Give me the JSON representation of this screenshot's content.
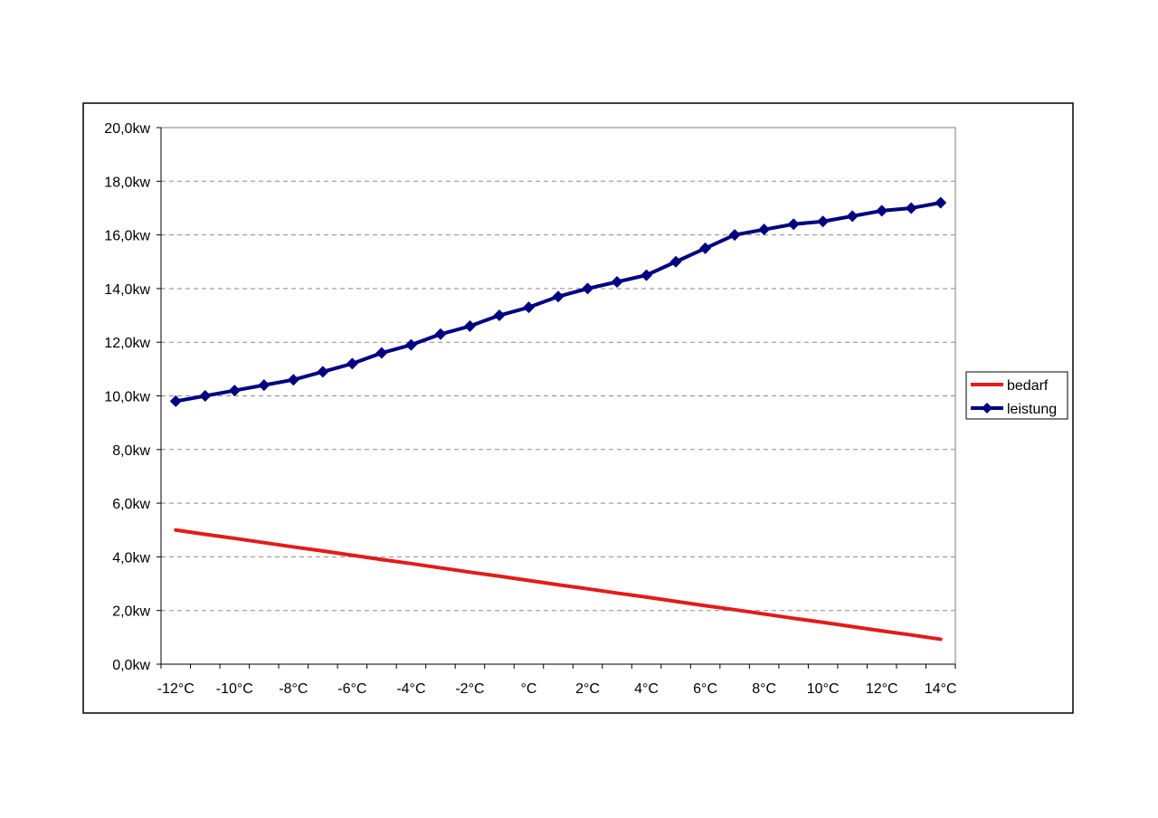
{
  "chart_data": {
    "type": "line",
    "x": [
      -12,
      -11,
      -10,
      -9,
      -8,
      -7,
      -6,
      -5,
      -4,
      -3,
      -2,
      -1,
      0,
      1,
      2,
      3,
      4,
      5,
      6,
      7,
      8,
      9,
      10,
      11,
      12,
      13,
      14
    ],
    "x_tick_values": [
      -12,
      -10,
      -8,
      -6,
      -4,
      -2,
      0,
      2,
      4,
      6,
      8,
      10,
      12,
      14
    ],
    "x_tick_labels": [
      "-12°C",
      "-10°C",
      "-8°C",
      "-6°C",
      "-4°C",
      "-2°C",
      "°C",
      "2°C",
      "4°C",
      "6°C",
      "8°C",
      "10°C",
      "12°C",
      "14°C"
    ],
    "y_tick_values": [
      0,
      2,
      4,
      6,
      8,
      10,
      12,
      14,
      16,
      18,
      20
    ],
    "y_tick_labels": [
      "0,0kw",
      "2,0kw",
      "4,0kw",
      "6,0kw",
      "8,0kw",
      "10,0kw",
      "12,0kw",
      "14,0kw",
      "16,0kw",
      "18,0kw",
      "20,0kw"
    ],
    "ylim": [
      0,
      20
    ],
    "xlim": [
      -12.5,
      14.5
    ],
    "grid": "horizontal dashed",
    "legend_position": "right",
    "series": [
      {
        "name": "bedarf",
        "color": "#e31b1b",
        "markers": false,
        "values": [
          5.0,
          4.84,
          4.69,
          4.53,
          4.37,
          4.22,
          4.06,
          3.9,
          3.75,
          3.59,
          3.43,
          3.28,
          3.12,
          2.96,
          2.81,
          2.65,
          2.5,
          2.34,
          2.18,
          2.03,
          1.87,
          1.71,
          1.56,
          1.4,
          1.24,
          1.09,
          0.93
        ]
      },
      {
        "name": "leistung",
        "color": "#000080",
        "markers": true,
        "values": [
          9.8,
          10.0,
          10.2,
          10.4,
          10.6,
          10.9,
          11.2,
          11.6,
          11.9,
          12.3,
          12.6,
          13.0,
          13.3,
          13.7,
          14.0,
          14.25,
          14.5,
          15.0,
          15.5,
          16.0,
          16.2,
          16.4,
          16.5,
          16.7,
          16.9,
          17.0,
          17.2
        ]
      }
    ]
  }
}
